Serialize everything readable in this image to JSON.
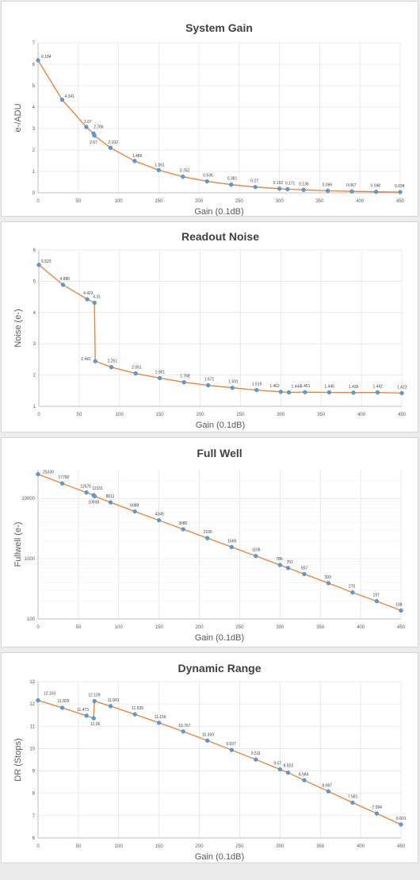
{
  "chart_data": [
    {
      "type": "line",
      "title": "System Gain",
      "xlabel": "Gain (0.1dB)",
      "ylabel": "e-/ADU",
      "xlim": [
        0,
        450
      ],
      "ylim": [
        0,
        7
      ],
      "xticks": [
        0,
        50,
        100,
        150,
        200,
        250,
        300,
        350,
        400,
        450
      ],
      "yticks": [
        0,
        1,
        2,
        3,
        4,
        5,
        6,
        7
      ],
      "log_y": false,
      "grid": true,
      "points": [
        {
          "x": 0,
          "y": 6.184,
          "label": "6.184"
        },
        {
          "x": 30,
          "y": 4.341,
          "label": "4.341"
        },
        {
          "x": 60,
          "y": 3.07,
          "label": "3.07"
        },
        {
          "x": 69,
          "y": 2.766,
          "label": "2.766"
        },
        {
          "x": 70,
          "y": 2.67,
          "label": "2.67"
        },
        {
          "x": 90,
          "y": 2.102,
          "label": "2.102"
        },
        {
          "x": 120,
          "y": 1.486,
          "label": "1.486"
        },
        {
          "x": 150,
          "y": 1.061,
          "label": "1.061"
        },
        {
          "x": 180,
          "y": 0.752,
          "label": "0.752"
        },
        {
          "x": 210,
          "y": 0.536,
          "label": "0.536"
        },
        {
          "x": 240,
          "y": 0.381,
          "label": "0.381"
        },
        {
          "x": 270,
          "y": 0.27,
          "label": "0.27"
        },
        {
          "x": 300,
          "y": 0.192,
          "label": "0.192"
        },
        {
          "x": 310,
          "y": 0.171,
          "label": "0.171"
        },
        {
          "x": 330,
          "y": 0.136,
          "label": "0.136"
        },
        {
          "x": 360,
          "y": 0.096,
          "label": "0.096"
        },
        {
          "x": 390,
          "y": 0.067,
          "label": "0.067"
        },
        {
          "x": 420,
          "y": 0.048,
          "label": "0.048"
        },
        {
          "x": 450,
          "y": 0.034,
          "label": "0.034"
        }
      ]
    },
    {
      "type": "line",
      "title": "Readout Noise",
      "xlabel": "Gain (0.1dB)",
      "ylabel": "Noise (e-)",
      "xlim": [
        0,
        450
      ],
      "ylim": [
        1,
        6
      ],
      "xticks": [
        0,
        50,
        100,
        150,
        200,
        250,
        300,
        350,
        400,
        450
      ],
      "yticks": [
        1,
        2,
        3,
        4,
        5,
        6
      ],
      "log_y": false,
      "grid": true,
      "points": [
        {
          "x": 0,
          "y": 5.523,
          "label": "5.523"
        },
        {
          "x": 30,
          "y": 4.886,
          "label": "4.886"
        },
        {
          "x": 60,
          "y": 4.423,
          "label": "4.423"
        },
        {
          "x": 69,
          "y": 4.31,
          "label": "4.31"
        },
        {
          "x": 70,
          "y": 2.442,
          "label": "2.442"
        },
        {
          "x": 90,
          "y": 2.251,
          "label": "2.251"
        },
        {
          "x": 120,
          "y": 2.051,
          "label": "2.051"
        },
        {
          "x": 150,
          "y": 1.901,
          "label": "1.901"
        },
        {
          "x": 180,
          "y": 1.768,
          "label": "1.768"
        },
        {
          "x": 210,
          "y": 1.671,
          "label": "1.671"
        },
        {
          "x": 240,
          "y": 1.591,
          "label": "1.591"
        },
        {
          "x": 270,
          "y": 1.519,
          "label": "1.519"
        },
        {
          "x": 300,
          "y": 1.462,
          "label": "1.462"
        },
        {
          "x": 310,
          "y": 1.444,
          "label": "1.444"
        },
        {
          "x": 330,
          "y": 1.451,
          "label": "1.451"
        },
        {
          "x": 360,
          "y": 1.445,
          "label": "1.445"
        },
        {
          "x": 390,
          "y": 1.436,
          "label": "1.436"
        },
        {
          "x": 420,
          "y": 1.442,
          "label": "1.442"
        },
        {
          "x": 450,
          "y": 1.422,
          "label": "1.422"
        }
      ]
    },
    {
      "type": "line",
      "title": "Full Well",
      "xlabel": "Gain (0.1dB)",
      "ylabel": "Fullwell (e-)",
      "xlim": [
        0,
        450
      ],
      "ylim": [
        100,
        30000
      ],
      "xticks": [
        0,
        50,
        100,
        150,
        200,
        250,
        300,
        350,
        400,
        450
      ],
      "yticks": [
        100,
        1000,
        10000
      ],
      "log_y": true,
      "grid": true,
      "points": [
        {
          "x": 0,
          "y": 25330,
          "label": "25330"
        },
        {
          "x": 30,
          "y": 17780,
          "label": "17780"
        },
        {
          "x": 60,
          "y": 12576,
          "label": "12576"
        },
        {
          "x": 69,
          "y": 11331,
          "label": "11331"
        },
        {
          "x": 70,
          "y": 10938,
          "label": "10938"
        },
        {
          "x": 90,
          "y": 8611,
          "label": "8611"
        },
        {
          "x": 120,
          "y": 6088,
          "label": "6088"
        },
        {
          "x": 150,
          "y": 4345,
          "label": "4345"
        },
        {
          "x": 180,
          "y": 3080,
          "label": "3080"
        },
        {
          "x": 210,
          "y": 2195,
          "label": "2195"
        },
        {
          "x": 240,
          "y": 1560,
          "label": "1560"
        },
        {
          "x": 270,
          "y": 1108,
          "label": "1108"
        },
        {
          "x": 300,
          "y": 786,
          "label": "786"
        },
        {
          "x": 310,
          "y": 701,
          "label": "701"
        },
        {
          "x": 330,
          "y": 557,
          "label": "557"
        },
        {
          "x": 360,
          "y": 393,
          "label": "393"
        },
        {
          "x": 390,
          "y": 275,
          "label": "275"
        },
        {
          "x": 420,
          "y": 197,
          "label": "197"
        },
        {
          "x": 450,
          "y": 138,
          "label": "138"
        }
      ]
    },
    {
      "type": "line",
      "title": "Dynamic Range",
      "xlabel": "Gain (0.1dB)",
      "ylabel": "DR (Stops)",
      "xlim": [
        0,
        450
      ],
      "ylim": [
        6,
        13
      ],
      "xticks": [
        0,
        50,
        100,
        150,
        200,
        250,
        300,
        350,
        400,
        450
      ],
      "yticks": [
        6,
        7,
        8,
        9,
        10,
        11,
        12,
        13
      ],
      "log_y": false,
      "grid": true,
      "points": [
        {
          "x": 0,
          "y": 12.163,
          "label": "12.163"
        },
        {
          "x": 30,
          "y": 11.829,
          "label": "11.829"
        },
        {
          "x": 60,
          "y": 11.473,
          "label": "11.473"
        },
        {
          "x": 69,
          "y": 11.36,
          "label": "11.36"
        },
        {
          "x": 70,
          "y": 12.129,
          "label": "12.129"
        },
        {
          "x": 90,
          "y": 11.901,
          "label": "11.901"
        },
        {
          "x": 120,
          "y": 11.535,
          "label": "11.535"
        },
        {
          "x": 150,
          "y": 11.156,
          "label": "11.156"
        },
        {
          "x": 180,
          "y": 10.767,
          "label": "10.767"
        },
        {
          "x": 210,
          "y": 10.359,
          "label": "10.359"
        },
        {
          "x": 240,
          "y": 9.937,
          "label": "9.937"
        },
        {
          "x": 270,
          "y": 9.511,
          "label": "9.511"
        },
        {
          "x": 300,
          "y": 9.07,
          "label": "9.07"
        },
        {
          "x": 310,
          "y": 8.923,
          "label": "8.923"
        },
        {
          "x": 330,
          "y": 8.584,
          "label": "8.584"
        },
        {
          "x": 360,
          "y": 8.087,
          "label": "8.087"
        },
        {
          "x": 390,
          "y": 7.581,
          "label": "7.581"
        },
        {
          "x": 420,
          "y": 7.094,
          "label": "7.094"
        },
        {
          "x": 450,
          "y": 6.601,
          "label": "6.601"
        }
      ]
    }
  ],
  "colors": {
    "line": "#ED7D31",
    "marker": "#5B9BD5",
    "grid": "#E4E4E4",
    "axis": "#BFBFBF",
    "text": "#404040"
  }
}
